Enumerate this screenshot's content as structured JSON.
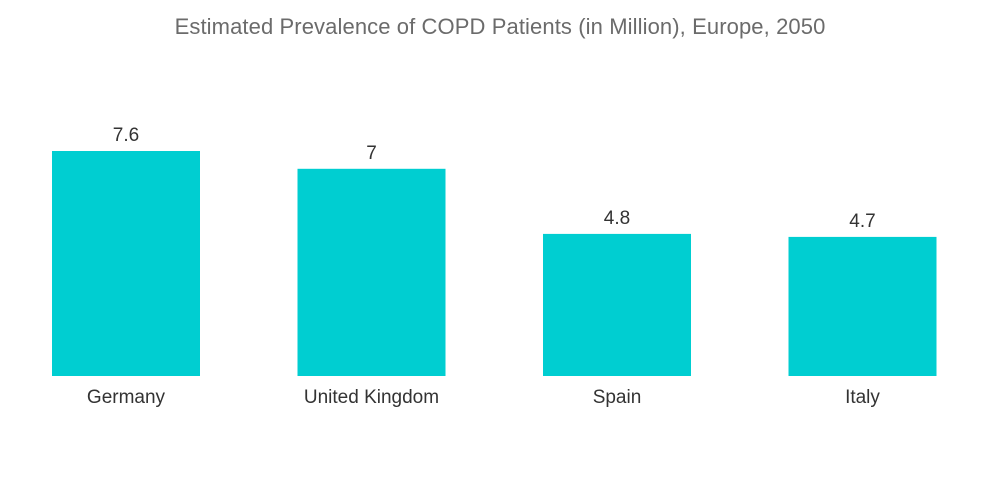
{
  "chart_data": {
    "type": "bar",
    "title": "Estimated Prevalence of COPD Patients (in Million), Europe, 2050",
    "categories": [
      "Germany",
      "United Kingdom",
      "Spain",
      "Italy"
    ],
    "values": [
      7.6,
      7,
      4.8,
      4.7
    ],
    "value_labels": [
      "7.6",
      "7",
      "4.8",
      "4.7"
    ],
    "xlabel": "",
    "ylabel": "",
    "ylim": [
      0,
      8
    ],
    "grid": false,
    "legend": "none",
    "colors": {
      "bar": "#00CED1"
    }
  }
}
